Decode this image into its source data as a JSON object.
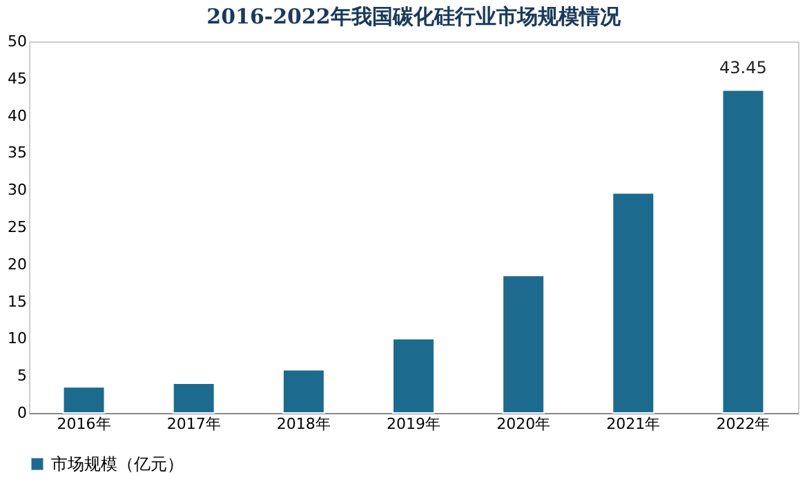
{
  "chart_data": {
    "type": "bar",
    "title": "2016-2022年我国碳化硅行业市场规模情况",
    "categories": [
      "2016年",
      "2017年",
      "2018年",
      "2019年",
      "2020年",
      "2021年",
      "2022年"
    ],
    "series": [
      {
        "name": "市场规模（亿元）",
        "color": "#1c6b8e",
        "values": [
          3.5,
          4.0,
          5.8,
          10.0,
          18.5,
          29.6,
          43.45
        ],
        "value_labels": [
          null,
          null,
          null,
          null,
          null,
          null,
          "43.45"
        ]
      }
    ],
    "ylim": [
      0,
      50
    ],
    "yticks": [
      0,
      5,
      10,
      15,
      20,
      25,
      30,
      35,
      40,
      45,
      50
    ],
    "grid": false,
    "legend": "bottom"
  }
}
